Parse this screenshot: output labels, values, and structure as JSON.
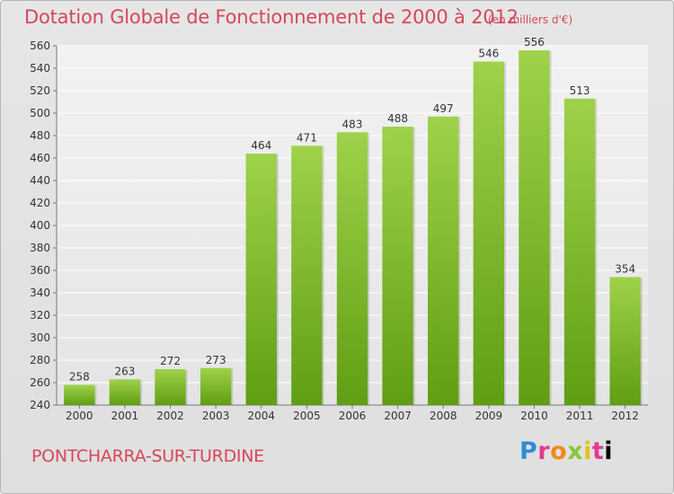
{
  "header": {
    "title": "Dotation Globale de Fonctionnement de 2000 à 2012",
    "subtitle": "(en milliers d'€)"
  },
  "footer": {
    "commune": "PONTCHARRA-SUR-TURDINE",
    "logo_letters": [
      "P",
      "r",
      "o",
      "x",
      "i",
      "t",
      "i"
    ]
  },
  "colors": {
    "title": "#d6475a",
    "bar_top": "#9fd24a",
    "bar_bottom": "#5f9e12"
  },
  "chart_data": {
    "type": "bar",
    "title": "Dotation Globale de Fonctionnement de 2000 à 2012",
    "categories": [
      "2000",
      "2001",
      "2002",
      "2003",
      "2004",
      "2005",
      "2006",
      "2007",
      "2008",
      "2009",
      "2010",
      "2011",
      "2012"
    ],
    "values": [
      258,
      263,
      272,
      273,
      464,
      471,
      483,
      488,
      497,
      546,
      556,
      513,
      354
    ],
    "ylim": [
      240,
      560
    ],
    "yticks": [
      240,
      260,
      280,
      300,
      320,
      340,
      360,
      380,
      400,
      420,
      440,
      460,
      480,
      500,
      520,
      540,
      560
    ],
    "grid": true,
    "data_labels": true
  }
}
